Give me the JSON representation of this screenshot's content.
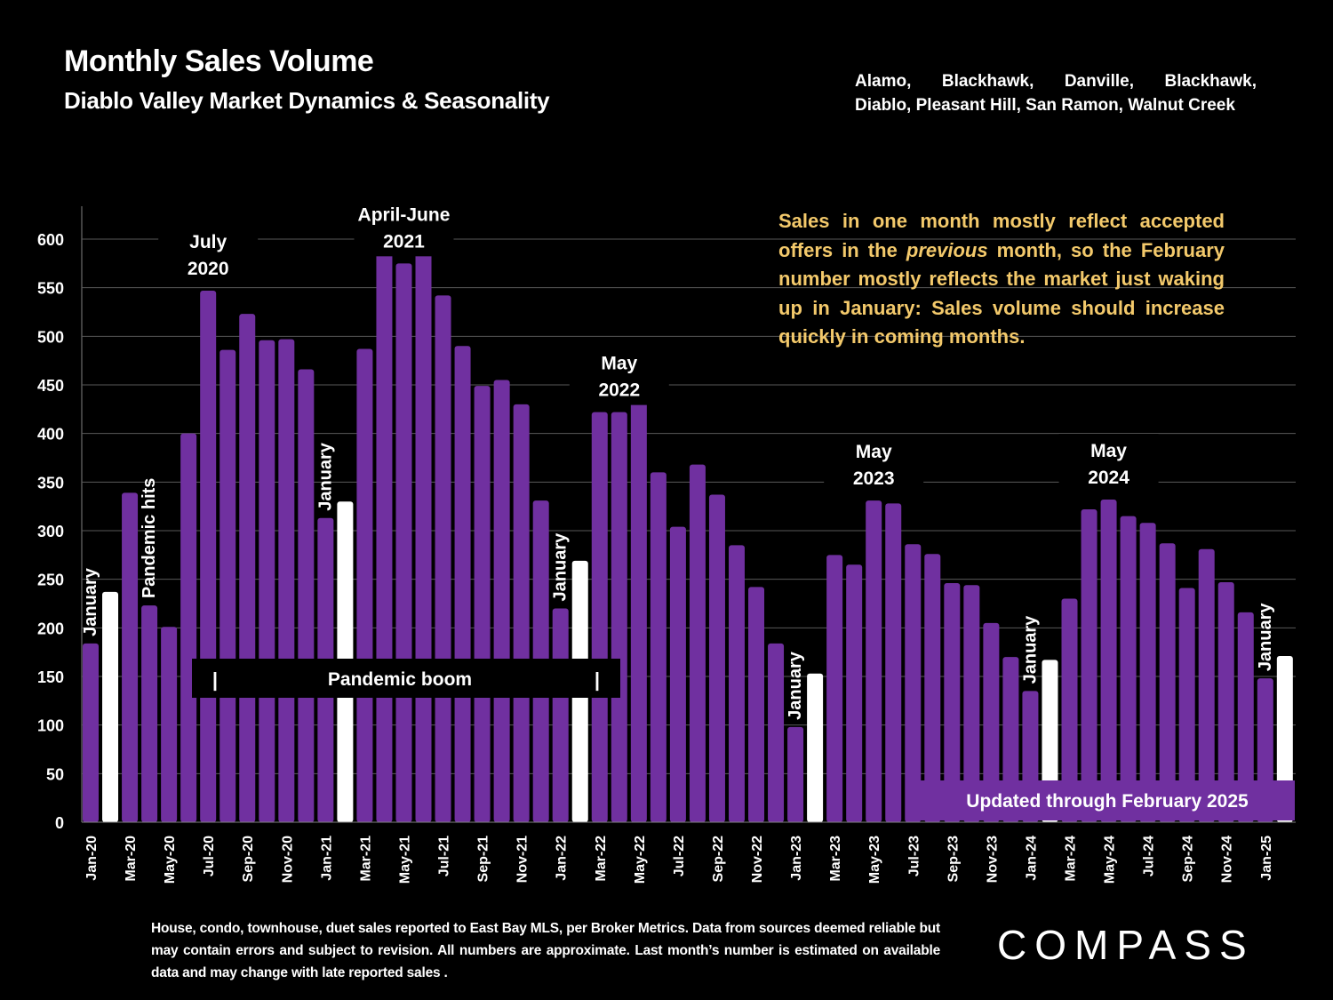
{
  "header": {
    "title": "Monthly Sales Volume",
    "subtitle": "Diablo Valley Market Dynamics & Seasonality",
    "areas_line1": [
      "Alamo,",
      "Blackhawk,",
      "Danville,",
      "Blackhawk,"
    ],
    "areas_line2": "Diablo, Pleasant Hill, San Ramon, Walnut Creek"
  },
  "note": {
    "part1": "Sales in one month mostly reflect accepted offers in the ",
    "italic": "previous",
    "part2": " month, so the February number mostly reflects the market just waking up in January:  Sales volume should increase quickly in coming months."
  },
  "footer": "House, condo, townhouse, duet sales reported to East Bay MLS, per Broker Metrics. Data from sources deemed reliable but may contain errors and subject to revision. All numbers are approximate. Last month’s number is estimated on available data and may change with late reported sales .",
  "logo": "COMPASS",
  "colors": {
    "bar": "#7030a0",
    "highlight": "#ffffff",
    "note": "#f3c96b",
    "grid": "#595959",
    "background": "#000000"
  },
  "chart_data": {
    "type": "bar",
    "title": "Monthly Sales Volume",
    "xlabel": "",
    "ylabel": "",
    "ylim": [
      0,
      630
    ],
    "yticks": [
      0,
      50,
      100,
      150,
      200,
      250,
      300,
      350,
      400,
      450,
      500,
      550,
      600
    ],
    "grid": true,
    "categories": [
      "Jan-20",
      "Feb-20",
      "Mar-20",
      "Apr-20",
      "May-20",
      "Jun-20",
      "Jul-20",
      "Aug-20",
      "Sep-20",
      "Oct-20",
      "Nov-20",
      "Dec-20",
      "Jan-21",
      "Feb-21",
      "Mar-21",
      "Apr-21",
      "May-21",
      "Jun-21",
      "Jul-21",
      "Aug-21",
      "Sep-21",
      "Oct-21",
      "Nov-21",
      "Dec-21",
      "Jan-22",
      "Feb-22",
      "Mar-22",
      "Apr-22",
      "May-22",
      "Jun-22",
      "Jul-22",
      "Aug-22",
      "Sep-22",
      "Oct-22",
      "Nov-22",
      "Dec-22",
      "Jan-23",
      "Feb-23",
      "Mar-23",
      "Apr-23",
      "May-23",
      "Jun-23",
      "Jul-23",
      "Aug-23",
      "Sep-23",
      "Oct-23",
      "Nov-23",
      "Dec-23",
      "Jan-24",
      "Feb-24",
      "Mar-24",
      "Apr-24",
      "May-24",
      "Jun-24",
      "Jul-24",
      "Aug-24",
      "Sep-24",
      "Oct-24",
      "Nov-24",
      "Dec-24",
      "Jan-25",
      "Feb-25"
    ],
    "tick_label_every": 2,
    "values": [
      184,
      237,
      339,
      223,
      201,
      400,
      547,
      486,
      523,
      496,
      497,
      466,
      313,
      330,
      487,
      624,
      575,
      620,
      542,
      490,
      449,
      455,
      430,
      331,
      220,
      269,
      422,
      422,
      448,
      360,
      304,
      368,
      337,
      285,
      242,
      184,
      98,
      153,
      275,
      265,
      331,
      328,
      286,
      276,
      246,
      244,
      205,
      170,
      135,
      167,
      230,
      322,
      332,
      315,
      308,
      287,
      241,
      281,
      247,
      216,
      148,
      171
    ],
    "highlighted_months": "Feb",
    "annotations": [
      {
        "text": "January",
        "at": "Jan-20",
        "rotated": true
      },
      {
        "text": "Pandemic hits",
        "at": "Apr-20",
        "rotated": true
      },
      {
        "text": "July\n2020",
        "at": "Jul-20"
      },
      {
        "text": "January",
        "at": "Jan-21",
        "rotated": true
      },
      {
        "text": "April-June\n2021",
        "at": "May-21"
      },
      {
        "text": "January",
        "at": "Jan-22",
        "rotated": true
      },
      {
        "text": "May\n2022",
        "at": "Apr-22"
      },
      {
        "text": "January",
        "at": "Jan-23",
        "rotated": true
      },
      {
        "text": "May\n2023",
        "at": "May-23"
      },
      {
        "text": "January",
        "at": "Jan-24",
        "rotated": true
      },
      {
        "text": "May\n2024",
        "at": "May-24"
      },
      {
        "text": "January",
        "at": "Jan-25",
        "rotated": true
      }
    ],
    "band_label": "Pandemic boom",
    "band_marker": "|",
    "updated_label": "Updated through February 2025"
  }
}
